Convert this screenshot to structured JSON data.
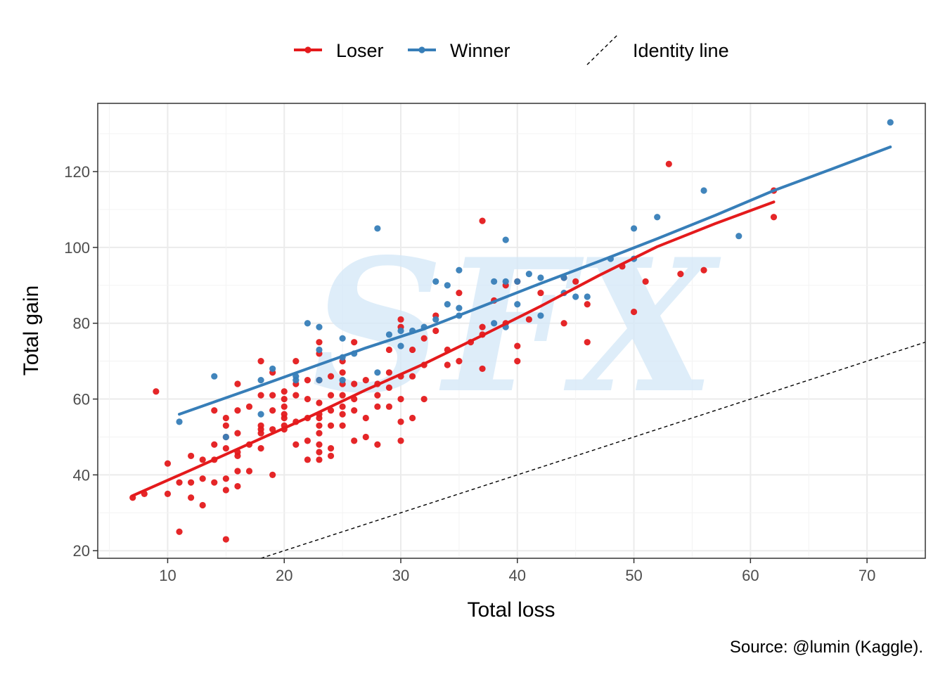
{
  "chart_data": {
    "type": "scatter",
    "xlabel": "Total loss",
    "ylabel": "Total gain",
    "caption": "Source: @lumin (Kaggle).",
    "watermark": "SFX",
    "xlim": [
      4,
      75
    ],
    "ylim": [
      18,
      138
    ],
    "x_ticks": [
      10,
      20,
      30,
      40,
      50,
      60,
      70
    ],
    "y_ticks": [
      20,
      40,
      60,
      80,
      100,
      120
    ],
    "grid": true,
    "legend_position": "top",
    "colors": {
      "loser": "#e41a1c",
      "winner": "#377eb8",
      "identity": "#000000"
    },
    "legend": [
      {
        "key": "loser",
        "label": "Loser"
      },
      {
        "key": "winner",
        "label": "Winner"
      },
      {
        "key": "identity",
        "label": "Identity line"
      }
    ],
    "series": [
      {
        "name": "Loser",
        "key": "loser",
        "points": [
          [
            7,
            34
          ],
          [
            8,
            35
          ],
          [
            9,
            62
          ],
          [
            10,
            43
          ],
          [
            10,
            35
          ],
          [
            11,
            38
          ],
          [
            11,
            25
          ],
          [
            12,
            45
          ],
          [
            12,
            38
          ],
          [
            12,
            34
          ],
          [
            13,
            44
          ],
          [
            13,
            39
          ],
          [
            13,
            32
          ],
          [
            14,
            57
          ],
          [
            14,
            48
          ],
          [
            14,
            44
          ],
          [
            14,
            38
          ],
          [
            15,
            55
          ],
          [
            15,
            53
          ],
          [
            15,
            50
          ],
          [
            15,
            47
          ],
          [
            15,
            39
          ],
          [
            15,
            36
          ],
          [
            15,
            23
          ],
          [
            16,
            64
          ],
          [
            16,
            57
          ],
          [
            16,
            51
          ],
          [
            16,
            46
          ],
          [
            16,
            45
          ],
          [
            16,
            41
          ],
          [
            16,
            37
          ],
          [
            17,
            58
          ],
          [
            17,
            48
          ],
          [
            17,
            41
          ],
          [
            18,
            70
          ],
          [
            18,
            61
          ],
          [
            18,
            53
          ],
          [
            18,
            52
          ],
          [
            18,
            51
          ],
          [
            18,
            47
          ],
          [
            19,
            67
          ],
          [
            19,
            61
          ],
          [
            19,
            57
          ],
          [
            19,
            52
          ],
          [
            19,
            40
          ],
          [
            20,
            62
          ],
          [
            20,
            60
          ],
          [
            20,
            58
          ],
          [
            20,
            56
          ],
          [
            20,
            55
          ],
          [
            20,
            53
          ],
          [
            20,
            52
          ],
          [
            21,
            70
          ],
          [
            21,
            64
          ],
          [
            21,
            61
          ],
          [
            21,
            54
          ],
          [
            21,
            48
          ],
          [
            22,
            65
          ],
          [
            22,
            60
          ],
          [
            22,
            55
          ],
          [
            22,
            49
          ],
          [
            22,
            44
          ],
          [
            23,
            75
          ],
          [
            23,
            72
          ],
          [
            23,
            65
          ],
          [
            23,
            59
          ],
          [
            23,
            56
          ],
          [
            23,
            55
          ],
          [
            23,
            53
          ],
          [
            23,
            51
          ],
          [
            23,
            48
          ],
          [
            23,
            46
          ],
          [
            23,
            44
          ],
          [
            24,
            66
          ],
          [
            24,
            61
          ],
          [
            24,
            57
          ],
          [
            24,
            53
          ],
          [
            24,
            47
          ],
          [
            24,
            45
          ],
          [
            25,
            70
          ],
          [
            25,
            67
          ],
          [
            25,
            64
          ],
          [
            25,
            61
          ],
          [
            25,
            58
          ],
          [
            25,
            56
          ],
          [
            25,
            53
          ],
          [
            26,
            75
          ],
          [
            26,
            64
          ],
          [
            26,
            60
          ],
          [
            26,
            57
          ],
          [
            26,
            49
          ],
          [
            27,
            65
          ],
          [
            27,
            55
          ],
          [
            27,
            50
          ],
          [
            28,
            64
          ],
          [
            28,
            61
          ],
          [
            28,
            58
          ],
          [
            28,
            48
          ],
          [
            29,
            73
          ],
          [
            29,
            67
          ],
          [
            29,
            63
          ],
          [
            29,
            58
          ],
          [
            30,
            81
          ],
          [
            30,
            79
          ],
          [
            30,
            66
          ],
          [
            30,
            60
          ],
          [
            30,
            54
          ],
          [
            30,
            49
          ],
          [
            31,
            73
          ],
          [
            31,
            66
          ],
          [
            31,
            55
          ],
          [
            32,
            76
          ],
          [
            32,
            69
          ],
          [
            32,
            60
          ],
          [
            33,
            82
          ],
          [
            33,
            78
          ],
          [
            34,
            73
          ],
          [
            34,
            69
          ],
          [
            35,
            88
          ],
          [
            35,
            70
          ],
          [
            36,
            75
          ],
          [
            37,
            107
          ],
          [
            37,
            79
          ],
          [
            37,
            77
          ],
          [
            37,
            68
          ],
          [
            38,
            86
          ],
          [
            39,
            90
          ],
          [
            39,
            80
          ],
          [
            40,
            91
          ],
          [
            40,
            74
          ],
          [
            40,
            70
          ],
          [
            41,
            81
          ],
          [
            42,
            88
          ],
          [
            44,
            92
          ],
          [
            44,
            80
          ],
          [
            45,
            91
          ],
          [
            46,
            85
          ],
          [
            46,
            75
          ],
          [
            49,
            95
          ],
          [
            50,
            83
          ],
          [
            51,
            91
          ],
          [
            53,
            122
          ],
          [
            54,
            93
          ],
          [
            56,
            94
          ],
          [
            62,
            115
          ],
          [
            62,
            108
          ]
        ],
        "trend": [
          [
            7,
            34.5
          ],
          [
            12,
            41.3
          ],
          [
            17,
            48.2
          ],
          [
            22,
            55.1
          ],
          [
            27,
            62.4
          ],
          [
            32,
            69.3
          ],
          [
            37,
            76.8
          ],
          [
            42,
            84.5
          ],
          [
            47,
            92.6
          ],
          [
            52,
            100.2
          ],
          [
            57,
            106.3
          ],
          [
            62,
            112
          ]
        ]
      },
      {
        "name": "Winner",
        "key": "winner",
        "points": [
          [
            11,
            54
          ],
          [
            14,
            66
          ],
          [
            15,
            50
          ],
          [
            18,
            65
          ],
          [
            18,
            56
          ],
          [
            19,
            68
          ],
          [
            21,
            66
          ],
          [
            21,
            65
          ],
          [
            22,
            80
          ],
          [
            23,
            79
          ],
          [
            23,
            73
          ],
          [
            23,
            65
          ],
          [
            25,
            76
          ],
          [
            25,
            71
          ],
          [
            25,
            65
          ],
          [
            26,
            72
          ],
          [
            28,
            105
          ],
          [
            28,
            67
          ],
          [
            29,
            77
          ],
          [
            30,
            78
          ],
          [
            30,
            74
          ],
          [
            31,
            78
          ],
          [
            32,
            79
          ],
          [
            33,
            91
          ],
          [
            33,
            81
          ],
          [
            34,
            90
          ],
          [
            34,
            85
          ],
          [
            35,
            94
          ],
          [
            35,
            84
          ],
          [
            35,
            82
          ],
          [
            38,
            91
          ],
          [
            38,
            80
          ],
          [
            39,
            102
          ],
          [
            39,
            91
          ],
          [
            39,
            79
          ],
          [
            40,
            91
          ],
          [
            40,
            85
          ],
          [
            41,
            93
          ],
          [
            42,
            92
          ],
          [
            42,
            82
          ],
          [
            44,
            92
          ],
          [
            44,
            88
          ],
          [
            45,
            87
          ],
          [
            46,
            87
          ],
          [
            48,
            97
          ],
          [
            50,
            105
          ],
          [
            50,
            97
          ],
          [
            52,
            108
          ],
          [
            56,
            115
          ],
          [
            59,
            103
          ],
          [
            72,
            133
          ]
        ],
        "trend": [
          [
            11,
            56
          ],
          [
            17,
            62.5
          ],
          [
            22,
            68
          ],
          [
            27,
            73.5
          ],
          [
            32,
            78.5
          ],
          [
            37,
            84.5
          ],
          [
            42,
            90.5
          ],
          [
            47,
            96.3
          ],
          [
            52,
            102.3
          ],
          [
            57,
            108.5
          ],
          [
            62,
            115
          ],
          [
            67,
            120.7
          ],
          [
            72,
            126.5
          ]
        ]
      }
    ],
    "identity_line": [
      [
        18,
        18
      ],
      [
        75,
        75
      ]
    ]
  }
}
